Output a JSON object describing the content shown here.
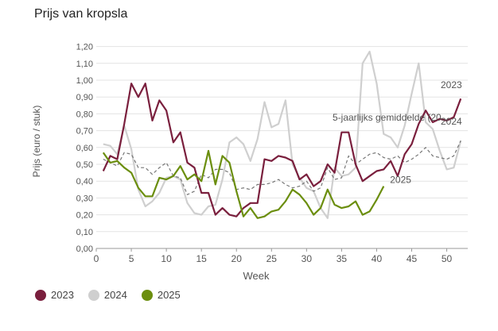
{
  "title": "Prijs van kropsla",
  "chart_data": {
    "type": "line",
    "xlabel": "Week",
    "ylabel": "Prijs (euro / stuk)",
    "xlim": [
      0,
      53
    ],
    "ylim": [
      0,
      1.25
    ],
    "x_ticks": [
      "0",
      "5",
      "10",
      "15",
      "20",
      "25",
      "30",
      "35",
      "40",
      "45",
      "50"
    ],
    "y_ticks": [
      "0,00",
      "0,10",
      "0,20",
      "0,30",
      "0,40",
      "0,50",
      "0,60",
      "0,70",
      "0,80",
      "0,90",
      "1,00",
      "1,10",
      "1,20"
    ],
    "grid": true,
    "series": [
      {
        "name": "2023",
        "color": "#7a1f3d",
        "end_label": "2023",
        "values": [
          [
            1,
            0.46
          ],
          [
            2,
            0.55
          ],
          [
            3,
            0.53
          ],
          [
            4,
            0.74
          ],
          [
            5,
            0.98
          ],
          [
            6,
            0.9
          ],
          [
            7,
            0.98
          ],
          [
            8,
            0.76
          ],
          [
            9,
            0.88
          ],
          [
            10,
            0.82
          ],
          [
            11,
            0.63
          ],
          [
            12,
            0.69
          ],
          [
            13,
            0.51
          ],
          [
            14,
            0.48
          ],
          [
            15,
            0.33
          ],
          [
            16,
            0.33
          ],
          [
            17,
            0.2
          ],
          [
            18,
            0.24
          ],
          [
            19,
            0.2
          ],
          [
            20,
            0.19
          ],
          [
            21,
            0.24
          ],
          [
            22,
            0.27
          ],
          [
            23,
            0.27
          ],
          [
            24,
            0.53
          ],
          [
            25,
            0.52
          ],
          [
            26,
            0.55
          ],
          [
            27,
            0.54
          ],
          [
            28,
            0.52
          ],
          [
            29,
            0.41
          ],
          [
            30,
            0.44
          ],
          [
            31,
            0.37
          ],
          [
            32,
            0.4
          ],
          [
            33,
            0.5
          ],
          [
            34,
            0.45
          ],
          [
            35,
            0.69
          ],
          [
            36,
            0.69
          ],
          [
            37,
            0.5
          ],
          [
            38,
            0.4
          ],
          [
            39,
            0.43
          ],
          [
            40,
            0.46
          ],
          [
            41,
            0.47
          ],
          [
            42,
            0.52
          ],
          [
            43,
            0.43
          ],
          [
            44,
            0.56
          ],
          [
            45,
            0.62
          ],
          [
            46,
            0.74
          ],
          [
            47,
            0.82
          ],
          [
            48,
            0.75
          ],
          [
            49,
            0.77
          ],
          [
            50,
            0.76
          ],
          [
            51,
            0.78
          ],
          [
            52,
            0.89
          ]
        ]
      },
      {
        "name": "2024",
        "color": "#cfcfcf",
        "end_label": "2024",
        "values": [
          [
            1,
            0.62
          ],
          [
            2,
            0.61
          ],
          [
            3,
            0.56
          ],
          [
            4,
            0.73
          ],
          [
            5,
            0.59
          ],
          [
            6,
            0.35
          ],
          [
            7,
            0.25
          ],
          [
            8,
            0.28
          ],
          [
            9,
            0.33
          ],
          [
            10,
            0.42
          ],
          [
            11,
            0.43
          ],
          [
            12,
            0.41
          ],
          [
            13,
            0.27
          ],
          [
            14,
            0.21
          ],
          [
            15,
            0.2
          ],
          [
            16,
            0.25
          ],
          [
            17,
            0.26
          ],
          [
            18,
            0.41
          ],
          [
            19,
            0.63
          ],
          [
            20,
            0.66
          ],
          [
            21,
            0.62
          ],
          [
            22,
            0.52
          ],
          [
            23,
            0.65
          ],
          [
            24,
            0.87
          ],
          [
            25,
            0.72
          ],
          [
            26,
            0.74
          ],
          [
            27,
            0.88
          ],
          [
            28,
            0.5
          ],
          [
            29,
            0.42
          ],
          [
            30,
            0.36
          ],
          [
            31,
            0.34
          ],
          [
            32,
            0.24
          ],
          [
            33,
            0.18
          ],
          [
            34,
            0.48
          ],
          [
            35,
            0.43
          ],
          [
            36,
            0.44
          ],
          [
            37,
            0.48
          ],
          [
            38,
            1.1
          ],
          [
            39,
            1.17
          ],
          [
            40,
            0.98
          ],
          [
            41,
            0.68
          ],
          [
            42,
            0.66
          ],
          [
            43,
            0.6
          ],
          [
            44,
            0.73
          ],
          [
            45,
            0.92
          ],
          [
            46,
            1.1
          ],
          [
            47,
            0.75
          ],
          [
            48,
            0.71
          ],
          [
            49,
            0.58
          ],
          [
            50,
            0.47
          ],
          [
            51,
            0.48
          ],
          [
            52,
            0.64
          ]
        ]
      },
      {
        "name": "2025",
        "color": "#6b8e0e",
        "end_label": "2025",
        "values": [
          [
            1,
            0.57
          ],
          [
            2,
            0.51
          ],
          [
            3,
            0.52
          ],
          [
            4,
            0.48
          ],
          [
            5,
            0.45
          ],
          [
            6,
            0.36
          ],
          [
            7,
            0.31
          ],
          [
            8,
            0.31
          ],
          [
            9,
            0.42
          ],
          [
            10,
            0.41
          ],
          [
            11,
            0.43
          ],
          [
            12,
            0.49
          ],
          [
            13,
            0.41
          ],
          [
            14,
            0.44
          ],
          [
            15,
            0.4
          ],
          [
            16,
            0.58
          ],
          [
            17,
            0.38
          ],
          [
            18,
            0.55
          ],
          [
            19,
            0.51
          ],
          [
            20,
            0.34
          ],
          [
            21,
            0.19
          ],
          [
            22,
            0.24
          ],
          [
            23,
            0.18
          ],
          [
            24,
            0.19
          ],
          [
            25,
            0.22
          ],
          [
            26,
            0.23
          ],
          [
            27,
            0.28
          ],
          [
            28,
            0.35
          ],
          [
            29,
            0.32
          ],
          [
            30,
            0.27
          ],
          [
            31,
            0.2
          ],
          [
            32,
            0.24
          ],
          [
            33,
            0.35
          ],
          [
            34,
            0.26
          ],
          [
            35,
            0.24
          ],
          [
            36,
            0.25
          ],
          [
            37,
            0.28
          ],
          [
            38,
            0.2
          ],
          [
            39,
            0.22
          ],
          [
            40,
            0.29
          ],
          [
            41,
            0.37
          ]
        ]
      },
      {
        "name": "5-jaarlijks gemiddelde (20...",
        "color": "#777777",
        "dashed": true,
        "end_label": "5-jaarlijks gemiddelde (20...",
        "values": [
          [
            1,
            0.53
          ],
          [
            2,
            0.51
          ],
          [
            3,
            0.49
          ],
          [
            4,
            0.57
          ],
          [
            5,
            0.56
          ],
          [
            6,
            0.48
          ],
          [
            7,
            0.48
          ],
          [
            8,
            0.44
          ],
          [
            9,
            0.48
          ],
          [
            10,
            0.51
          ],
          [
            11,
            0.43
          ],
          [
            12,
            0.42
          ],
          [
            13,
            0.32
          ],
          [
            14,
            0.34
          ],
          [
            15,
            0.44
          ],
          [
            16,
            0.42
          ],
          [
            17,
            0.47
          ],
          [
            18,
            0.47
          ],
          [
            19,
            0.45
          ],
          [
            20,
            0.35
          ],
          [
            21,
            0.36
          ],
          [
            22,
            0.35
          ],
          [
            23,
            0.38
          ],
          [
            24,
            0.38
          ],
          [
            25,
            0.39
          ],
          [
            26,
            0.41
          ],
          [
            27,
            0.38
          ],
          [
            28,
            0.36
          ],
          [
            29,
            0.37
          ],
          [
            30,
            0.4
          ],
          [
            31,
            0.34
          ],
          [
            32,
            0.36
          ],
          [
            33,
            0.48
          ],
          [
            34,
            0.41
          ],
          [
            35,
            0.42
          ],
          [
            36,
            0.55
          ],
          [
            37,
            0.5
          ],
          [
            38,
            0.53
          ],
          [
            39,
            0.56
          ],
          [
            40,
            0.57
          ],
          [
            41,
            0.54
          ],
          [
            42,
            0.53
          ],
          [
            43,
            0.55
          ],
          [
            44,
            0.51
          ],
          [
            45,
            0.53
          ],
          [
            46,
            0.56
          ],
          [
            47,
            0.6
          ],
          [
            48,
            0.55
          ],
          [
            49,
            0.54
          ],
          [
            50,
            0.53
          ],
          [
            51,
            0.55
          ],
          [
            52,
            0.64
          ]
        ]
      }
    ],
    "legend": {
      "position": "bottom-left",
      "items": [
        {
          "label": "2023",
          "color": "#7a1f3d"
        },
        {
          "label": "2024",
          "color": "#cfcfcf"
        },
        {
          "label": "2025",
          "color": "#6b8e0e"
        }
      ]
    }
  }
}
